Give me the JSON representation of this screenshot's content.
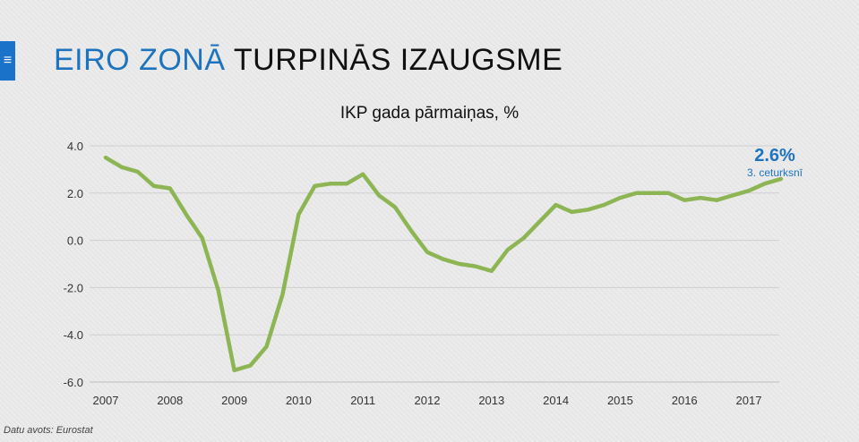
{
  "header": {
    "title_accent": "EIRO ZONĀ",
    "title_rest": "TURPINĀS IZAUGSME",
    "menu_icon": "hamburger-menu-icon"
  },
  "footer": {
    "source": "Datu avots: Eurostat"
  },
  "colors": {
    "accent": "#1e73be",
    "line": "#8db554",
    "menu_tab": "#1a73c9"
  },
  "chart_data": {
    "type": "line",
    "title": "IKP gada pārmaiņas, %",
    "xlabel": "",
    "ylabel": "",
    "ylim": [
      -6,
      4
    ],
    "y_ticks": [
      "4.0",
      "2.0",
      "0.0",
      "-2.0",
      "-4.0",
      "-6.0"
    ],
    "y_tick_values": [
      4,
      2,
      0,
      -2,
      -4,
      -6
    ],
    "x_ticks": [
      "2007",
      "2008",
      "2009",
      "2010",
      "2011",
      "2012",
      "2013",
      "2014",
      "2015",
      "2016",
      "2017"
    ],
    "grid": true,
    "series": [
      {
        "x": [
          "2007Q1",
          "2007Q2",
          "2007Q3",
          "2007Q4",
          "2008Q1",
          "2008Q2",
          "2008Q3",
          "2008Q4",
          "2009Q1",
          "2009Q2",
          "2009Q3",
          "2009Q4",
          "2010Q1",
          "2010Q2",
          "2010Q3",
          "2010Q4",
          "2011Q1",
          "2011Q2",
          "2011Q3",
          "2011Q4",
          "2012Q1",
          "2012Q2",
          "2012Q3",
          "2012Q4",
          "2013Q1",
          "2013Q2",
          "2013Q3",
          "2013Q4",
          "2014Q1",
          "2014Q2",
          "2014Q3",
          "2014Q4",
          "2015Q1",
          "2015Q2",
          "2015Q3",
          "2015Q4",
          "2016Q1",
          "2016Q2",
          "2016Q3",
          "2016Q4",
          "2017Q1",
          "2017Q2",
          "2017Q3"
        ],
        "values": [
          3.5,
          3.1,
          2.9,
          2.3,
          2.2,
          1.1,
          0.1,
          -2.1,
          -5.5,
          -5.3,
          -4.5,
          -2.3,
          1.1,
          2.3,
          2.4,
          2.4,
          2.8,
          1.9,
          1.4,
          0.4,
          -0.5,
          -0.8,
          -1.0,
          -1.1,
          -1.3,
          -0.4,
          0.1,
          0.8,
          1.5,
          1.2,
          1.3,
          1.5,
          1.8,
          2.0,
          2.0,
          2.0,
          1.7,
          1.8,
          1.7,
          1.9,
          2.1,
          2.4,
          2.6
        ]
      }
    ],
    "annotation": {
      "value_label": "2.6%",
      "sub_label": "3. ceturksnī"
    }
  }
}
